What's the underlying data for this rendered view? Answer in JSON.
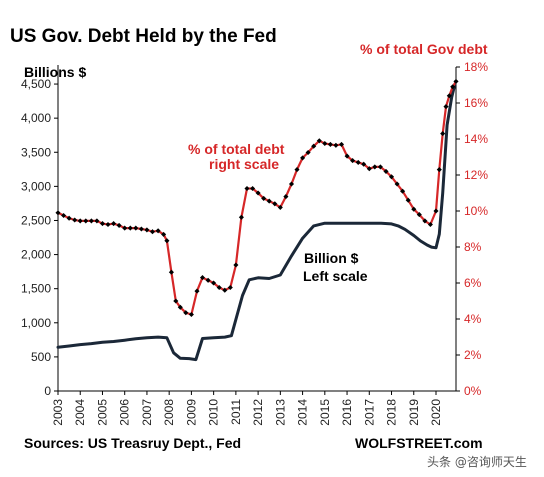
{
  "colors": {
    "left_series": "#1b2838",
    "right_series": "#d62728",
    "marker": "#000000",
    "axis": "#000000",
    "right_text": "#d62728"
  },
  "texts": {
    "title": "US Gov. Debt Held by the Fed",
    "left_unit": "Billions $",
    "right_title": "% of total Gov debt",
    "annot_red_1": "% of total debt",
    "annot_red_2": "right scale",
    "annot_black_1": "Billion $",
    "annot_black_2": "Left scale",
    "source": "Sources: US Treasruy Dept., Fed",
    "brand": "WOLFSTREET.com",
    "watermark": "头条 @咨询师天生"
  },
  "chart_data": {
    "type": "line",
    "title": "US Gov. Debt Held by the Fed",
    "left_axis": {
      "label": "Billions $",
      "ylim": [
        0,
        4750
      ],
      "ticks": [
        0,
        500,
        1000,
        1500,
        2000,
        2500,
        3000,
        3500,
        4000,
        4500
      ],
      "tick_labels": [
        "0",
        "500",
        "1,000",
        "1,500",
        "2,000",
        "2,500",
        "3,000",
        "3,500",
        "4,000",
        "4,500"
      ]
    },
    "right_axis": {
      "label": "% of total Gov debt",
      "ylim": [
        0,
        18
      ],
      "ticks": [
        0,
        2,
        4,
        6,
        8,
        10,
        12,
        14,
        16,
        18
      ],
      "tick_labels": [
        "0%",
        "2%",
        "4%",
        "6%",
        "8%",
        "10%",
        "12%",
        "14%",
        "16%",
        "18%"
      ]
    },
    "x_axis": {
      "xlim": [
        2003,
        2020.9
      ],
      "ticks": [
        2003,
        2004,
        2005,
        2006,
        2007,
        2008,
        2009,
        2010,
        2011,
        2012,
        2013,
        2014,
        2015,
        2016,
        2017,
        2018,
        2019,
        2020
      ],
      "tick_labels": [
        "2003",
        "2004",
        "2005",
        "2006",
        "2007",
        "2008",
        "2009",
        "2010",
        "2011",
        "2012",
        "2013",
        "2014",
        "2015",
        "2016",
        "2017",
        "2018",
        "2019",
        "2020"
      ]
    },
    "grid": false,
    "series": [
      {
        "name": "Billion $",
        "axis": "left",
        "x": [
          2003.0,
          2003.5,
          2004.0,
          2004.5,
          2005.0,
          2005.5,
          2006.0,
          2006.5,
          2007.0,
          2007.5,
          2007.9,
          2008.2,
          2008.5,
          2008.9,
          2009.2,
          2009.5,
          2010.0,
          2010.5,
          2010.8,
          2011.0,
          2011.3,
          2011.6,
          2012.0,
          2012.5,
          2013.0,
          2013.5,
          2014.0,
          2014.5,
          2015.0,
          2015.5,
          2016.0,
          2016.5,
          2017.0,
          2017.5,
          2018.0,
          2018.3,
          2018.6,
          2019.0,
          2019.3,
          2019.6,
          2019.8,
          2020.0,
          2020.15,
          2020.3,
          2020.5,
          2020.7,
          2020.85
        ],
        "values": [
          640,
          660,
          680,
          695,
          715,
          725,
          745,
          765,
          780,
          790,
          780,
          560,
          480,
          475,
          460,
          770,
          780,
          790,
          810,
          1050,
          1400,
          1630,
          1660,
          1650,
          1700,
          1980,
          2240,
          2420,
          2460,
          2460,
          2460,
          2460,
          2460,
          2460,
          2450,
          2420,
          2370,
          2280,
          2200,
          2140,
          2110,
          2100,
          2300,
          2900,
          3900,
          4300,
          4500
        ]
      },
      {
        "name": "% of total debt",
        "axis": "right",
        "x": [
          2003.0,
          2003.25,
          2003.5,
          2003.75,
          2004.0,
          2004.25,
          2004.5,
          2004.75,
          2005.0,
          2005.25,
          2005.5,
          2005.75,
          2006.0,
          2006.25,
          2006.5,
          2006.75,
          2007.0,
          2007.25,
          2007.5,
          2007.75,
          2007.9,
          2008.1,
          2008.3,
          2008.5,
          2008.75,
          2009.0,
          2009.25,
          2009.5,
          2009.75,
          2010.0,
          2010.25,
          2010.5,
          2010.75,
          2011.0,
          2011.25,
          2011.5,
          2011.75,
          2012.0,
          2012.25,
          2012.5,
          2012.75,
          2013.0,
          2013.25,
          2013.5,
          2013.75,
          2014.0,
          2014.25,
          2014.5,
          2014.75,
          2015.0,
          2015.25,
          2015.5,
          2015.75,
          2016.0,
          2016.25,
          2016.5,
          2016.75,
          2017.0,
          2017.25,
          2017.5,
          2017.75,
          2018.0,
          2018.25,
          2018.5,
          2018.75,
          2019.0,
          2019.25,
          2019.5,
          2019.75,
          2020.0,
          2020.15,
          2020.3,
          2020.45,
          2020.6,
          2020.75,
          2020.9
        ],
        "values": [
          9.9,
          9.75,
          9.6,
          9.5,
          9.45,
          9.45,
          9.45,
          9.45,
          9.3,
          9.25,
          9.3,
          9.2,
          9.05,
          9.05,
          9.05,
          9.0,
          8.95,
          8.85,
          8.9,
          8.7,
          8.35,
          6.6,
          5.0,
          4.65,
          4.35,
          4.25,
          5.55,
          6.3,
          6.15,
          6.0,
          5.75,
          5.6,
          5.75,
          7.0,
          9.65,
          11.25,
          11.25,
          11.0,
          10.7,
          10.55,
          10.4,
          10.2,
          10.8,
          11.5,
          12.3,
          12.95,
          13.25,
          13.6,
          13.9,
          13.75,
          13.7,
          13.65,
          13.7,
          13.05,
          12.8,
          12.7,
          12.6,
          12.35,
          12.45,
          12.45,
          12.2,
          11.9,
          11.5,
          11.1,
          10.6,
          10.1,
          9.8,
          9.45,
          9.25,
          10.0,
          12.3,
          14.3,
          15.8,
          16.4,
          16.9,
          17.2
        ]
      }
    ]
  }
}
